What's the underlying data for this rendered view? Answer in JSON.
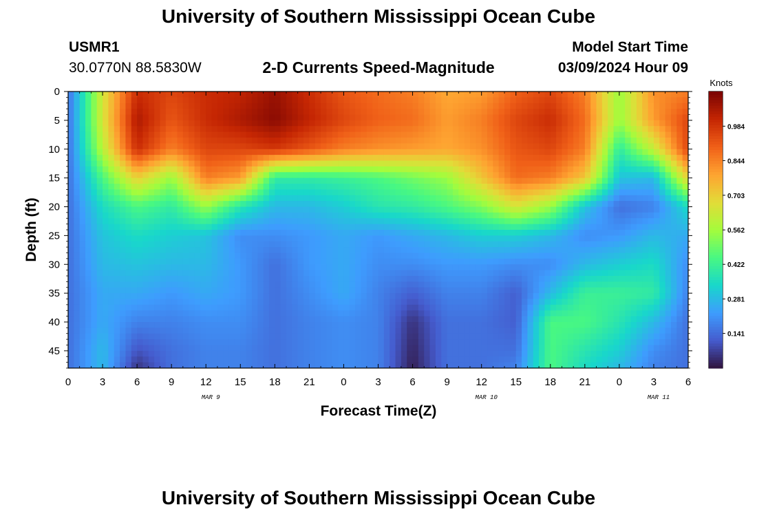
{
  "header": {
    "title": "University of Southern Mississippi Ocean Cube",
    "station_id": "USMR1",
    "station_coords": "30.0770N  88.5830W",
    "product": "2-D Currents Speed-Magnitude",
    "model_start_label": "Model Start Time",
    "model_start_value": "03/09/2024 Hour 09"
  },
  "footer": {
    "title": "University of Southern Mississippi Ocean Cube"
  },
  "chart_data": {
    "type": "heatmap",
    "xlabel": "Forecast Time(Z)",
    "ylabel": "Depth (ft)",
    "x_ticks": [
      "0",
      "3",
      "6",
      "9",
      "12",
      "15",
      "18",
      "21",
      "0",
      "3",
      "6",
      "9",
      "12",
      "15",
      "18",
      "21",
      "0",
      "3",
      "6"
    ],
    "x_range_hours": [
      0,
      54
    ],
    "date_labels": [
      {
        "text": "MAR 9",
        "hour": 12
      },
      {
        "text": "MAR 10",
        "hour": 36
      },
      {
        "text": "MAR 11",
        "hour": 51
      }
    ],
    "y_ticks": [
      "0",
      "5",
      "10",
      "15",
      "20",
      "25",
      "30",
      "35",
      "40",
      "45"
    ],
    "y_range": [
      0,
      48
    ],
    "y_inverted": true,
    "colorbar": {
      "title": "Knots",
      "tick_labels": [
        "0.984",
        "0.844",
        "0.703",
        "0.562",
        "0.422",
        "0.281",
        "0.141"
      ],
      "min": 0.0,
      "max": 1.125,
      "palette": "turbo"
    },
    "depths_ft": [
      0,
      5,
      10,
      15,
      20,
      25,
      30,
      35,
      40,
      45,
      48
    ],
    "times_h": [
      0,
      3,
      6,
      9,
      12,
      15,
      18,
      21,
      24,
      27,
      30,
      33,
      36,
      39,
      42,
      45,
      48,
      51,
      54
    ],
    "speed_knots": [
      [
        0.15,
        0.65,
        1.0,
        0.95,
        1.0,
        1.02,
        1.08,
        1.0,
        0.92,
        0.88,
        0.85,
        0.78,
        0.8,
        0.9,
        0.95,
        0.85,
        0.55,
        0.82,
        0.85
      ],
      [
        0.15,
        0.65,
        1.05,
        0.92,
        1.0,
        1.05,
        1.1,
        1.02,
        0.95,
        0.9,
        0.88,
        0.8,
        0.85,
        0.95,
        1.0,
        0.88,
        0.55,
        0.8,
        0.95
      ],
      [
        0.15,
        0.6,
        1.0,
        0.85,
        0.95,
        0.95,
        0.98,
        0.92,
        0.85,
        0.82,
        0.8,
        0.78,
        0.82,
        0.92,
        0.95,
        0.85,
        0.4,
        0.62,
        0.95
      ],
      [
        0.15,
        0.45,
        0.7,
        0.55,
        0.85,
        0.8,
        0.4,
        0.4,
        0.42,
        0.45,
        0.5,
        0.55,
        0.72,
        0.88,
        0.85,
        0.72,
        0.3,
        0.28,
        0.7
      ],
      [
        0.15,
        0.35,
        0.45,
        0.4,
        0.55,
        0.38,
        0.28,
        0.28,
        0.32,
        0.38,
        0.4,
        0.45,
        0.52,
        0.65,
        0.55,
        0.3,
        0.15,
        0.18,
        0.35
      ],
      [
        0.15,
        0.3,
        0.35,
        0.32,
        0.3,
        0.2,
        0.2,
        0.22,
        0.25,
        0.22,
        0.25,
        0.28,
        0.32,
        0.32,
        0.28,
        0.2,
        0.22,
        0.28,
        0.25
      ],
      [
        0.15,
        0.28,
        0.3,
        0.28,
        0.28,
        0.22,
        0.15,
        0.22,
        0.25,
        0.2,
        0.2,
        0.22,
        0.22,
        0.2,
        0.2,
        0.28,
        0.32,
        0.35,
        0.2
      ],
      [
        0.15,
        0.25,
        0.25,
        0.22,
        0.25,
        0.22,
        0.15,
        0.2,
        0.25,
        0.18,
        0.12,
        0.18,
        0.18,
        0.12,
        0.28,
        0.42,
        0.42,
        0.4,
        0.18
      ],
      [
        0.15,
        0.25,
        0.18,
        0.18,
        0.2,
        0.2,
        0.15,
        0.18,
        0.2,
        0.18,
        0.05,
        0.15,
        0.15,
        0.12,
        0.45,
        0.45,
        0.38,
        0.28,
        0.15
      ],
      [
        0.15,
        0.28,
        0.1,
        0.15,
        0.18,
        0.18,
        0.15,
        0.18,
        0.2,
        0.18,
        0.03,
        0.15,
        0.15,
        0.15,
        0.45,
        0.38,
        0.32,
        0.2,
        0.15
      ],
      [
        0.15,
        0.28,
        0.05,
        0.15,
        0.18,
        0.18,
        0.15,
        0.18,
        0.2,
        0.18,
        0.02,
        0.15,
        0.15,
        0.18,
        0.45,
        0.35,
        0.28,
        0.18,
        0.15
      ]
    ]
  }
}
